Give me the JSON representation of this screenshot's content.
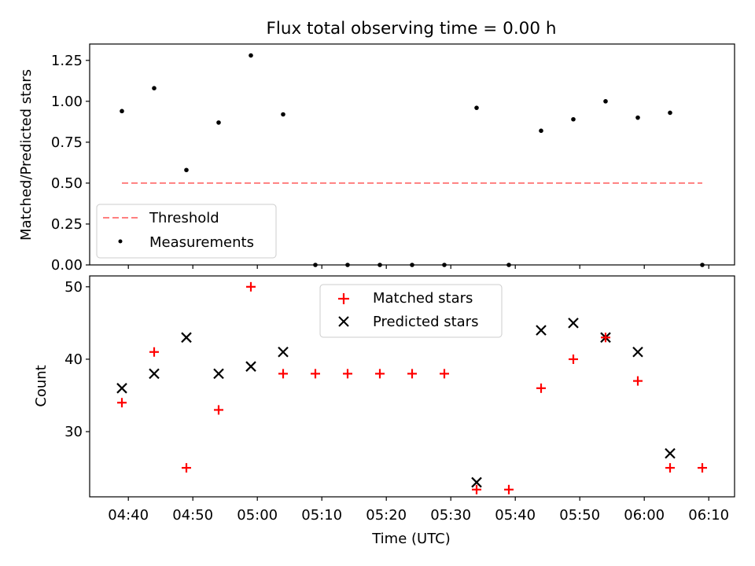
{
  "title": "Flux total observing time = 0.00 h",
  "colors": {
    "threshold": "#ff7f7f",
    "measurement": "#000000",
    "matched": "#ff0000",
    "predicted": "#000000"
  },
  "chart_data": [
    {
      "type": "scatter",
      "title": "Flux total observing time = 0.00 h",
      "xlabel": "",
      "ylabel": "Matched/Predicted stars",
      "xlim": [
        "04:34",
        "06:14"
      ],
      "ylim": [
        0,
        1.35
      ],
      "yticks": [
        0.0,
        0.25,
        0.5,
        0.75,
        1.0,
        1.25
      ],
      "ytick_labels": [
        "0.00",
        "0.25",
        "0.50",
        "0.75",
        "1.00",
        "1.25"
      ],
      "legend": {
        "position": "lower-left",
        "entries": [
          "Threshold",
          "Measurements"
        ]
      },
      "threshold": {
        "name": "Threshold",
        "style": "dashed",
        "value": 0.5,
        "x_start": "04:39",
        "x_end": "06:09"
      },
      "series": [
        {
          "name": "Measurements",
          "marker": "dot",
          "x": [
            "04:39",
            "04:44",
            "04:49",
            "04:54",
            "04:59",
            "05:04",
            "05:09",
            "05:14",
            "05:19",
            "05:24",
            "05:29",
            "05:34",
            "05:39",
            "05:44",
            "05:49",
            "05:54",
            "05:59",
            "06:04",
            "06:09"
          ],
          "values": [
            0.94,
            1.08,
            0.58,
            0.87,
            1.28,
            0.92,
            0.0,
            0.0,
            0.0,
            0.0,
            0.0,
            0.96,
            0.0,
            0.82,
            0.89,
            1.0,
            0.9,
            0.93,
            0.0
          ]
        }
      ]
    },
    {
      "type": "scatter",
      "xlabel": "Time (UTC)",
      "ylabel": "Count",
      "xlim": [
        "04:34",
        "06:14"
      ],
      "ylim": [
        21,
        51.5
      ],
      "xticks": [
        "04:40",
        "04:50",
        "05:00",
        "05:10",
        "05:20",
        "05:30",
        "05:40",
        "05:50",
        "06:00",
        "06:10"
      ],
      "yticks": [
        30,
        40,
        50
      ],
      "ytick_labels": [
        "30",
        "40",
        "50"
      ],
      "legend": {
        "position": "top-center",
        "entries": [
          "Matched stars",
          "Predicted stars"
        ]
      },
      "series": [
        {
          "name": "Matched stars",
          "marker": "plus",
          "x": [
            "04:39",
            "04:44",
            "04:49",
            "04:54",
            "04:59",
            "05:04",
            "05:09",
            "05:14",
            "05:19",
            "05:24",
            "05:29",
            "05:34",
            "05:39",
            "05:44",
            "05:49",
            "05:54",
            "05:59",
            "06:04",
            "06:09"
          ],
          "values": [
            34,
            41,
            25,
            33,
            50,
            38,
            38,
            38,
            38,
            38,
            38,
            22,
            22,
            36,
            40,
            43,
            37,
            25,
            25
          ]
        },
        {
          "name": "Predicted stars",
          "marker": "x",
          "x": [
            "04:39",
            "04:44",
            "04:49",
            "04:54",
            "04:59",
            "05:04",
            "05:34",
            "05:44",
            "05:49",
            "05:54",
            "05:59",
            "06:04"
          ],
          "values": [
            36,
            38,
            43,
            38,
            39,
            41,
            23,
            44,
            45,
            43,
            41,
            27
          ]
        }
      ]
    }
  ]
}
